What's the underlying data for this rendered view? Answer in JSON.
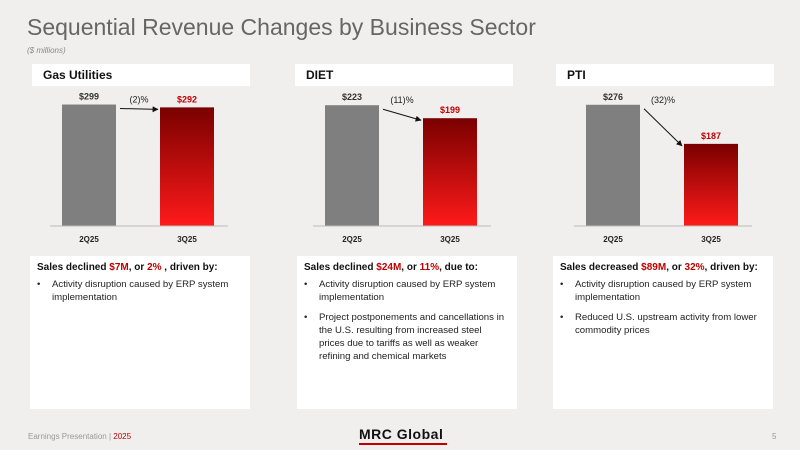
{
  "slide": {
    "title": "Sequential Revenue Changes by Business Sector",
    "subtitle": "($ millions)"
  },
  "chart_data": [
    {
      "type": "bar",
      "title": "Gas Utilities",
      "categories": [
        "2Q25",
        "3Q25"
      ],
      "values": [
        299,
        292
      ],
      "value_labels": [
        "$299",
        "$292"
      ],
      "change_label": "(2)%",
      "ylim": [
        0,
        320
      ]
    },
    {
      "type": "bar",
      "title": "DIET",
      "categories": [
        "2Q25",
        "3Q25"
      ],
      "values": [
        223,
        199
      ],
      "value_labels": [
        "$223",
        "$199"
      ],
      "change_label": "(11)%",
      "ylim": [
        0,
        240
      ]
    },
    {
      "type": "bar",
      "title": "PTI",
      "categories": [
        "2Q25",
        "3Q25"
      ],
      "values": [
        276,
        187
      ],
      "value_labels": [
        "$276",
        "$187"
      ],
      "change_label": "(32)%",
      "ylim": [
        0,
        296
      ]
    }
  ],
  "boxes": [
    {
      "head_pre": "Sales declined ",
      "amount": "$7M",
      "mid": ", or ",
      "pct": "2%",
      "head_post": " , driven by:",
      "bullets": [
        "Activity disruption caused by ERP system  implementation"
      ]
    },
    {
      "head_pre": "Sales declined ",
      "amount": "$24M",
      "mid": ", or ",
      "pct": "11%",
      "head_post": ", due to:",
      "bullets": [
        "Activity disruption caused by ERP system implementation",
        "Project postponements and cancellations in the U.S. resulting from increased steel prices due to tariffs as well as weaker refining and chemical markets"
      ]
    },
    {
      "head_pre": "Sales decreased ",
      "amount": "$89M",
      "mid": ", or ",
      "pct": "32%",
      "head_post": ", driven by:",
      "bullets": [
        "Activity disruption caused by ERP system implementation",
        "Reduced U.S. upstream activity from lower commodity prices"
      ]
    }
  ],
  "footer": {
    "text": "Earnings Presentation | ",
    "year": "2025",
    "logo": "MRC Global",
    "page": "5"
  },
  "colors": {
    "bar_prior": "#7f7f7f",
    "bar_current_top": "#7a0000",
    "bar_current_bottom": "#ff1a1a",
    "accent": "#c00000"
  }
}
